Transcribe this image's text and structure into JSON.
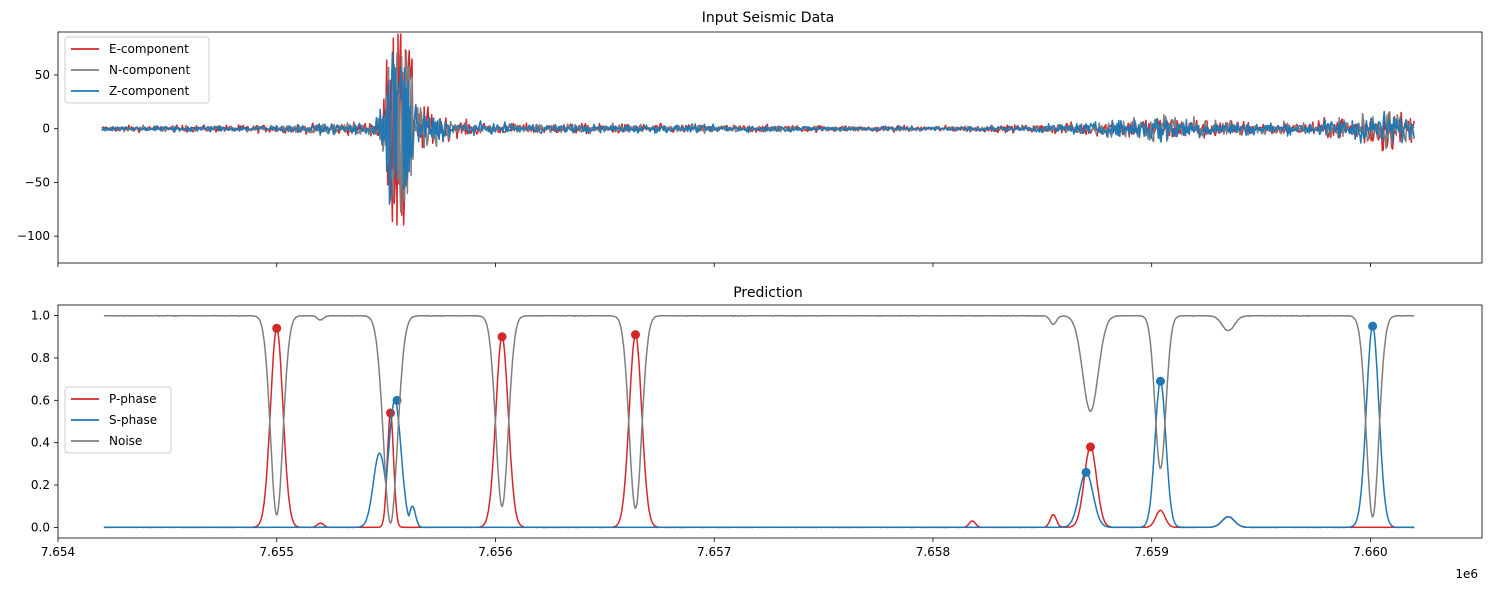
{
  "chart_data": [
    {
      "type": "line",
      "title": "Input Seismic Data",
      "xlabel": "",
      "ylabel": "",
      "xlim": [
        7654000,
        7660510
      ],
      "ylim": [
        -125,
        90
      ],
      "yticks": [
        {
          "value": 50,
          "label": "50"
        },
        {
          "value": 0,
          "label": "0"
        },
        {
          "value": -50,
          "label": "−50"
        },
        {
          "value": -100,
          "label": "−100"
        }
      ],
      "xticks": [
        7654000,
        7655000,
        7656000,
        7657000,
        7658000,
        7659000,
        7660000
      ],
      "x_range": [
        7654200,
        7660200
      ],
      "legend_position": "upper-left",
      "series": [
        {
          "name": "E-component",
          "color": "#d62728",
          "amplitude_envelope": [
            [
              7654200,
              5
            ],
            [
              7654700,
              6
            ],
            [
              7655100,
              7
            ],
            [
              7655450,
              12
            ],
            [
              7655520,
              85
            ],
            [
              7655580,
              -115
            ],
            [
              7655650,
              45
            ],
            [
              7655800,
              15
            ],
            [
              7656000,
              9
            ],
            [
              7656700,
              8
            ],
            [
              7657300,
              6
            ],
            [
              7657900,
              5
            ],
            [
              7658400,
              6
            ],
            [
              7658700,
              12
            ],
            [
              7658800,
              14
            ],
            [
              7659050,
              22
            ],
            [
              7659300,
              15
            ],
            [
              7659700,
              10
            ],
            [
              7659950,
              25
            ],
            [
              7660050,
              45
            ],
            [
              7660200,
              20
            ]
          ]
        },
        {
          "name": "N-component",
          "color": "#7f7f7f",
          "amplitude_envelope": [
            [
              7654200,
              4
            ],
            [
              7654700,
              5
            ],
            [
              7655100,
              6
            ],
            [
              7655450,
              12
            ],
            [
              7655520,
              80
            ],
            [
              7655580,
              -80
            ],
            [
              7655650,
              40
            ],
            [
              7655800,
              14
            ],
            [
              7656000,
              8
            ],
            [
              7656700,
              7
            ],
            [
              7657300,
              5
            ],
            [
              7657900,
              4
            ],
            [
              7658400,
              5
            ],
            [
              7658700,
              10
            ],
            [
              7658800,
              13
            ],
            [
              7659050,
              27
            ],
            [
              7659300,
              14
            ],
            [
              7659700,
              9
            ],
            [
              7659950,
              25
            ],
            [
              7660050,
              35
            ],
            [
              7660200,
              18
            ]
          ]
        },
        {
          "name": "Z-component",
          "color": "#1f77b4",
          "amplitude_envelope": [
            [
              7654200,
              4
            ],
            [
              7654700,
              5
            ],
            [
              7655100,
              6
            ],
            [
              7655450,
              12
            ],
            [
              7655520,
              78
            ],
            [
              7655580,
              -60
            ],
            [
              7655650,
              35
            ],
            [
              7655800,
              13
            ],
            [
              7656000,
              8
            ],
            [
              7656700,
              7
            ],
            [
              7657300,
              5
            ],
            [
              7657900,
              4
            ],
            [
              7658400,
              5
            ],
            [
              7658700,
              10
            ],
            [
              7658800,
              12
            ],
            [
              7659050,
              25
            ],
            [
              7659300,
              12
            ],
            [
              7659700,
              9
            ],
            [
              7659950,
              22
            ],
            [
              7660050,
              30
            ],
            [
              7660200,
              16
            ]
          ]
        }
      ]
    },
    {
      "type": "line",
      "title": "Prediction",
      "xlabel": "",
      "ylabel": "",
      "xlim": [
        7654000,
        7660510
      ],
      "ylim": [
        -0.05,
        1.05
      ],
      "yticks": [
        {
          "value": 0.0,
          "label": "0.0"
        },
        {
          "value": 0.2,
          "label": "0.2"
        },
        {
          "value": 0.4,
          "label": "0.4"
        },
        {
          "value": 0.6,
          "label": "0.6"
        },
        {
          "value": 0.8,
          "label": "0.8"
        },
        {
          "value": 1.0,
          "label": "1.0"
        }
      ],
      "xticks": [
        {
          "value": 7654000,
          "label": "7.654"
        },
        {
          "value": 7655000,
          "label": "7.655"
        },
        {
          "value": 7656000,
          "label": "7.656"
        },
        {
          "value": 7657000,
          "label": "7.657"
        },
        {
          "value": 7658000,
          "label": "7.658"
        },
        {
          "value": 7659000,
          "label": "7.659"
        },
        {
          "value": 7660000,
          "label": "7.660"
        }
      ],
      "x_offset_label": "1e6",
      "legend_position": "center-left",
      "series": [
        {
          "name": "P-phase",
          "color": "#d62728",
          "peaks": [
            {
              "x": 7655000,
              "y": 0.94,
              "width": 40
            },
            {
              "x": 7655520,
              "y": 0.54,
              "width": 20
            },
            {
              "x": 7656030,
              "y": 0.9,
              "width": 40
            },
            {
              "x": 7656640,
              "y": 0.91,
              "width": 40
            },
            {
              "x": 7658720,
              "y": 0.38,
              "width": 40
            },
            {
              "x": 7659040,
              "y": 0.08,
              "width": 30
            },
            {
              "x": 7659350,
              "y": 0.05,
              "width": 40
            },
            {
              "x": 7658180,
              "y": 0.03,
              "width": 20
            },
            {
              "x": 7658550,
              "y": 0.06,
              "width": 20
            },
            {
              "x": 7655200,
              "y": 0.02,
              "width": 20
            }
          ],
          "markers": [
            {
              "x": 7655000,
              "y": 0.94
            },
            {
              "x": 7655520,
              "y": 0.54
            },
            {
              "x": 7656030,
              "y": 0.9
            },
            {
              "x": 7656640,
              "y": 0.91
            },
            {
              "x": 7658720,
              "y": 0.38
            }
          ]
        },
        {
          "name": "S-phase",
          "color": "#1f77b4",
          "peaks": [
            {
              "x": 7655540,
              "y": 0.6,
              "width": 40
            },
            {
              "x": 7655470,
              "y": 0.35,
              "width": 40
            },
            {
              "x": 7655620,
              "y": 0.1,
              "width": 20
            },
            {
              "x": 7658700,
              "y": 0.26,
              "width": 45
            },
            {
              "x": 7659040,
              "y": 0.69,
              "width": 35
            },
            {
              "x": 7659350,
              "y": 0.05,
              "width": 40
            },
            {
              "x": 7660010,
              "y": 0.95,
              "width": 40
            }
          ],
          "markers": [
            {
              "x": 7655550,
              "y": 0.6
            },
            {
              "x": 7658700,
              "y": 0.26
            },
            {
              "x": 7659040,
              "y": 0.69
            },
            {
              "x": 7660010,
              "y": 0.95
            }
          ]
        },
        {
          "name": "Noise",
          "color": "#7f7f7f",
          "baseline": 1.0,
          "dips": [
            {
              "x": 7655000,
              "y": 0.06,
              "width": 40
            },
            {
              "x": 7655520,
              "y": 0.02,
              "width": 45
            },
            {
              "x": 7656030,
              "y": 0.1,
              "width": 40
            },
            {
              "x": 7656640,
              "y": 0.09,
              "width": 40
            },
            {
              "x": 7658720,
              "y": 0.55,
              "width": 50
            },
            {
              "x": 7659040,
              "y": 0.28,
              "width": 35
            },
            {
              "x": 7660010,
              "y": 0.05,
              "width": 40
            },
            {
              "x": 7659350,
              "y": 0.93,
              "width": 40
            },
            {
              "x": 7658550,
              "y": 0.96,
              "width": 20
            },
            {
              "x": 7655200,
              "y": 0.98,
              "width": 20
            }
          ]
        }
      ]
    }
  ]
}
